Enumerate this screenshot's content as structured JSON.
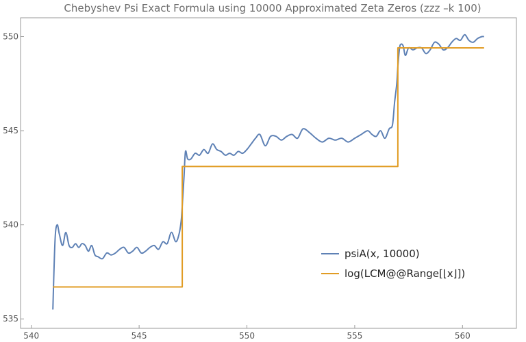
{
  "chart_data": {
    "type": "line",
    "title": "Chebyshev Psi Exact Formula using 10000 Approximated Zeta Zeros (zzz –k 100)",
    "xlabel": "",
    "ylabel": "",
    "xlim": [
      539.5,
      562.5
    ],
    "ylim": [
      534.5,
      551.0
    ],
    "xticks": [
      540,
      545,
      550,
      555,
      560
    ],
    "yticks": [
      535,
      540,
      545,
      550
    ],
    "grid": false,
    "legend": "bottom-right",
    "series": [
      {
        "name": "psiA(x, 10000)",
        "color": "#5e81b5",
        "style": "solid",
        "x": [
          541.0,
          541.1,
          541.2,
          541.3,
          541.45,
          541.6,
          541.75,
          541.9,
          542.05,
          542.2,
          542.35,
          542.5,
          542.65,
          542.8,
          542.95,
          543.1,
          543.3,
          543.5,
          543.7,
          543.9,
          544.1,
          544.3,
          544.5,
          544.7,
          544.9,
          545.1,
          545.3,
          545.5,
          545.7,
          545.9,
          546.1,
          546.3,
          546.5,
          546.7,
          546.85,
          546.95,
          547.0,
          547.08,
          547.15,
          547.25,
          547.4,
          547.6,
          547.8,
          548.0,
          548.2,
          548.4,
          548.6,
          548.8,
          549.0,
          549.2,
          549.4,
          549.6,
          549.8,
          550.0,
          550.2,
          550.4,
          550.6,
          550.85,
          551.1,
          551.35,
          551.6,
          551.85,
          552.1,
          552.35,
          552.6,
          552.9,
          553.2,
          553.5,
          553.8,
          554.1,
          554.4,
          554.7,
          555.0,
          555.3,
          555.6,
          555.8,
          556.0,
          556.2,
          556.4,
          556.6,
          556.75,
          556.85,
          556.95,
          557.0,
          557.08,
          557.15,
          557.25,
          557.35,
          557.5,
          557.7,
          557.9,
          558.1,
          558.3,
          558.5,
          558.7,
          558.9,
          559.1,
          559.3,
          559.5,
          559.7,
          559.9,
          560.1,
          560.3,
          560.5,
          560.7,
          560.9,
          561.0
        ],
        "y": [
          535.5,
          539.2,
          540.0,
          539.5,
          538.9,
          539.6,
          538.9,
          538.8,
          539.0,
          538.8,
          539.0,
          538.9,
          538.6,
          538.9,
          538.4,
          538.3,
          538.2,
          538.5,
          538.4,
          538.5,
          538.7,
          538.8,
          538.5,
          538.6,
          538.8,
          538.5,
          538.6,
          538.8,
          538.9,
          538.7,
          539.1,
          539.0,
          539.6,
          539.1,
          539.5,
          540.2,
          541.0,
          542.5,
          543.9,
          543.5,
          543.5,
          543.8,
          543.7,
          544.0,
          543.8,
          544.3,
          544.0,
          543.9,
          543.7,
          543.8,
          543.7,
          543.9,
          543.8,
          544.0,
          544.3,
          544.6,
          544.8,
          544.2,
          544.7,
          544.7,
          544.5,
          544.7,
          544.8,
          544.6,
          545.1,
          544.9,
          544.6,
          544.4,
          544.6,
          544.5,
          544.6,
          544.4,
          544.6,
          544.8,
          545.0,
          544.8,
          544.7,
          545.0,
          544.6,
          545.1,
          545.3,
          546.5,
          547.5,
          548.4,
          549.4,
          549.6,
          549.5,
          549.0,
          549.4,
          549.3,
          549.4,
          549.4,
          549.1,
          549.3,
          549.7,
          549.6,
          549.3,
          549.4,
          549.7,
          549.9,
          549.8,
          550.1,
          549.8,
          549.7,
          549.9,
          550.0,
          550.0
        ]
      },
      {
        "name": "log(LCM@@Range[⌊x⌋])",
        "color": "#e19c24",
        "style": "step",
        "x": [
          541.0,
          547.0,
          547.0,
          557.0,
          557.0,
          561.0
        ],
        "y": [
          536.7,
          536.7,
          543.1,
          543.1,
          549.4,
          549.4
        ]
      }
    ]
  }
}
